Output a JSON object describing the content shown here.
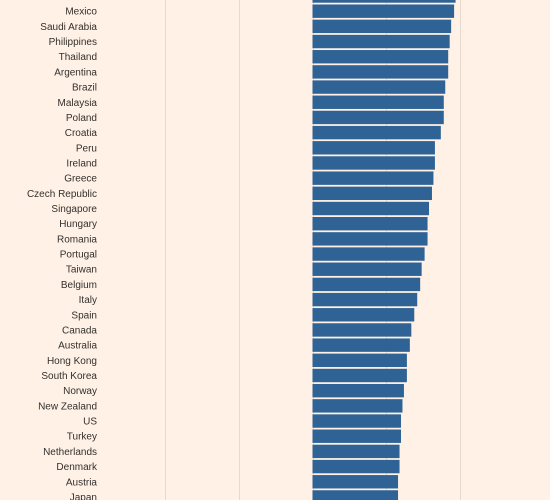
{
  "chart_data": {
    "type": "bar",
    "orientation": "horizontal",
    "title": "",
    "xlabel": "",
    "ylabel": "",
    "grid": true,
    "xlim": [
      -100,
      100
    ],
    "bar_color": "#2f6395",
    "background_color": "#fff1e5",
    "gridline_color": "#e6d9ce",
    "partial_categories": [
      "",
      "Japan"
    ],
    "categories": [
      "",
      "Mexico",
      "Saudi Arabia",
      "Philippines",
      "Thailand",
      "Argentina",
      "Brazil",
      "Malaysia",
      "Poland",
      "Croatia",
      "Peru",
      "Ireland",
      "Greece",
      "Czech Republic",
      "Singapore",
      "Hungary",
      "Romania",
      "Portugal",
      "Taiwan",
      "Belgium",
      "Italy",
      "Spain",
      "Canada",
      "Australia",
      "Hong Kong",
      "South Korea",
      "Norway",
      "New Zealand",
      "US",
      "Turkey",
      "Netherlands",
      "Denmark",
      "Austria",
      "Japan"
    ],
    "values": [
      97,
      96,
      94,
      93,
      92,
      92,
      90,
      89,
      89,
      87,
      83,
      83,
      82,
      81,
      79,
      78,
      78,
      76,
      74,
      73,
      71,
      69,
      67,
      66,
      64,
      64,
      62,
      61,
      60,
      60,
      59,
      59,
      58,
      58
    ]
  }
}
